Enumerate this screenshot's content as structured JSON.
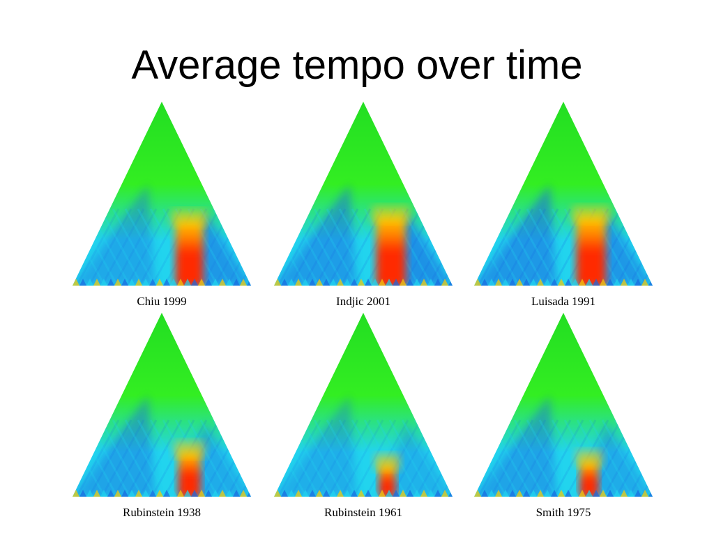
{
  "slide": {
    "title": "Average tempo over time"
  },
  "chart_data": [
    {
      "type": "heatmap",
      "label": "Chiu 1999",
      "hotspot": {
        "center": 0.65,
        "width": 0.15,
        "height": 0.36
      },
      "cool_bias": {
        "left": 0.7,
        "right": 0.9
      }
    },
    {
      "type": "heatmap",
      "label": "Indjic 2001",
      "hotspot": {
        "center": 0.65,
        "width": 0.16,
        "height": 0.38
      },
      "cool_bias": {
        "left": 0.9,
        "right": 1.0
      }
    },
    {
      "type": "heatmap",
      "label": "Luisada 1991",
      "hotspot": {
        "center": 0.65,
        "width": 0.16,
        "height": 0.38
      },
      "cool_bias": {
        "left": 1.0,
        "right": 0.9
      }
    },
    {
      "type": "heatmap",
      "label": "Rubinstein 1938",
      "hotspot": {
        "center": 0.65,
        "width": 0.12,
        "height": 0.25
      },
      "cool_bias": {
        "left": 0.8,
        "right": 0.6
      }
    },
    {
      "type": "heatmap",
      "label": "Rubinstein 1961",
      "hotspot": {
        "center": 0.63,
        "width": 0.09,
        "height": 0.18
      },
      "cool_bias": {
        "left": 0.6,
        "right": 0.5
      }
    },
    {
      "type": "heatmap",
      "label": "Smith 1975",
      "hotspot": {
        "center": 0.64,
        "width": 0.1,
        "height": 0.2
      },
      "cool_bias": {
        "left": 0.8,
        "right": 0.6
      }
    }
  ],
  "colors": {
    "apex": "#22dd22",
    "green": "#33ee22",
    "cool": "#1a66e0",
    "cyan": "#22d4ee",
    "hot": "#ff2a00",
    "warm": "#ffcc00"
  }
}
